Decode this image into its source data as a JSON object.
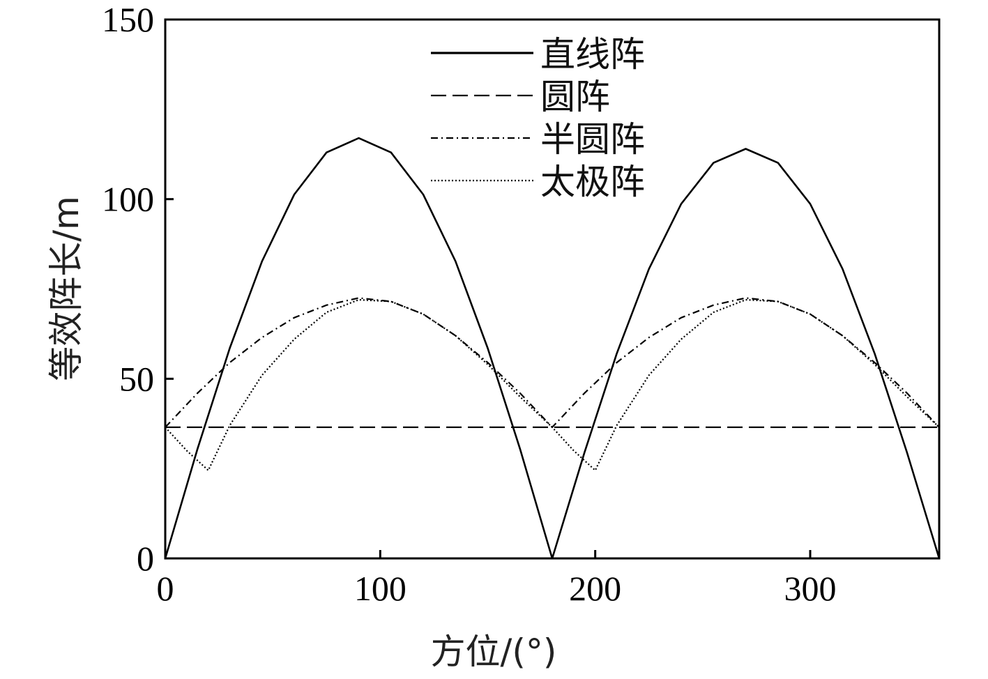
{
  "chart_data": {
    "type": "line",
    "xlabel": "方位/(°)",
    "ylabel": "等效阵长/m",
    "xlim": [
      0,
      360
    ],
    "ylim": [
      0,
      150
    ],
    "xticks": [
      0,
      100,
      200,
      300
    ],
    "yticks": [
      0,
      50,
      100,
      150
    ],
    "grid": false,
    "legend_position": "top-center",
    "series": [
      {
        "name": "直线阵",
        "style": "solid",
        "color": "#000000",
        "x": [
          0,
          15,
          30,
          45,
          60,
          75,
          90,
          105,
          120,
          135,
          150,
          165,
          180,
          195,
          210,
          225,
          240,
          255,
          270,
          285,
          300,
          315,
          330,
          345,
          360
        ],
        "y": [
          0,
          30.5,
          58.5,
          82.7,
          101.3,
          113.0,
          117.0,
          113.0,
          101.3,
          82.7,
          58.5,
          30.5,
          0,
          29.5,
          57.0,
          80.6,
          98.7,
          110.1,
          114.0,
          110.1,
          98.7,
          80.6,
          57.0,
          29.5,
          0
        ]
      },
      {
        "name": "圆阵",
        "style": "dashed",
        "color": "#000000",
        "x": [
          0,
          360
        ],
        "y": [
          36.5,
          36.5
        ]
      },
      {
        "name": "半圆阵",
        "style": "dashdot",
        "color": "#000000",
        "x": [
          0,
          15,
          30,
          45,
          60,
          75,
          90,
          105,
          120,
          135,
          150,
          165,
          180,
          195,
          210,
          225,
          240,
          255,
          270,
          285,
          300,
          315,
          330,
          345,
          360
        ],
        "y": [
          36.5,
          46.0,
          54.5,
          61.5,
          67.0,
          70.5,
          72.5,
          71.5,
          68.0,
          62.0,
          54.5,
          46.0,
          36.5,
          46.0,
          54.5,
          61.5,
          67.0,
          70.5,
          72.5,
          71.5,
          68.0,
          62.0,
          54.5,
          46.0,
          36.5
        ]
      },
      {
        "name": "太极阵",
        "style": "dotted",
        "color": "#000000",
        "x": [
          0,
          10,
          20,
          30,
          45,
          60,
          75,
          90,
          105,
          120,
          135,
          150,
          165,
          180,
          190,
          200,
          210,
          225,
          240,
          255,
          270,
          285,
          300,
          315,
          330,
          345,
          360
        ],
        "y": [
          36.5,
          30.0,
          24.5,
          37.0,
          51.0,
          61.0,
          68.5,
          72.0,
          71.5,
          68.0,
          62.0,
          54.0,
          45.0,
          36.5,
          30.0,
          24.5,
          37.0,
          51.0,
          61.0,
          68.5,
          72.0,
          71.5,
          68.0,
          62.0,
          54.0,
          45.0,
          36.5
        ]
      }
    ]
  }
}
